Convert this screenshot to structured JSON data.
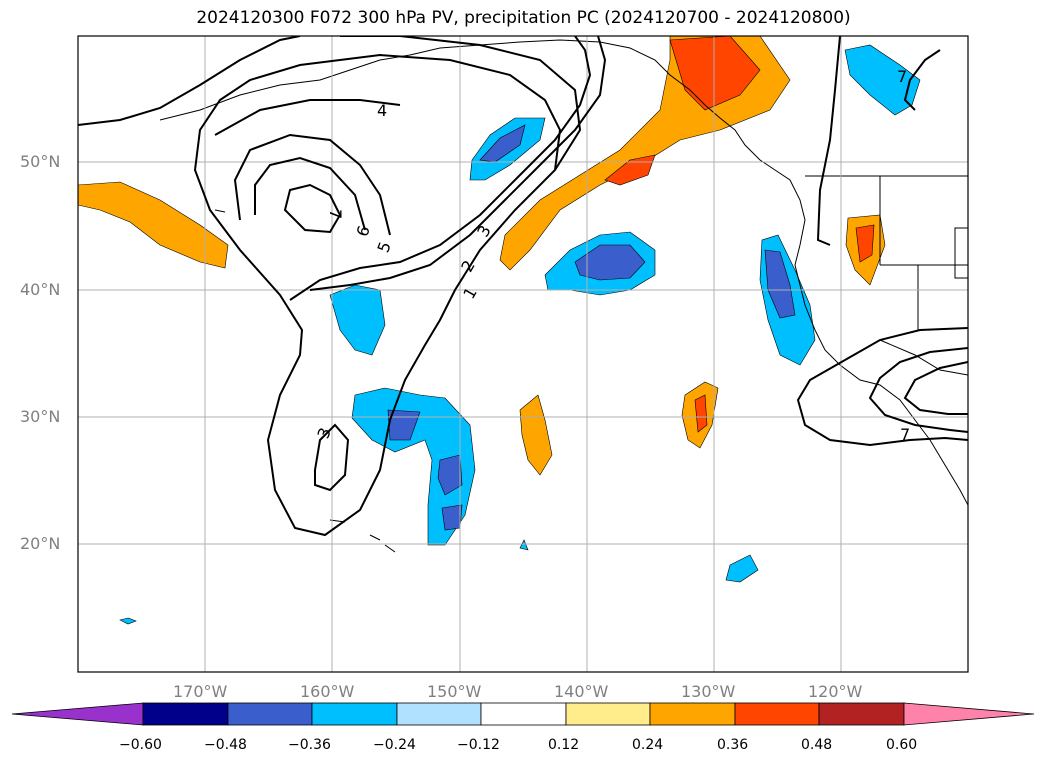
{
  "title": "2024120300 F072 300 hPa PV, precipitation PC (2024120700 - 2024120800)",
  "latitude_labels": [
    "50°N",
    "40°N",
    "30°N",
    "20°N"
  ],
  "longitude_labels": [
    "170°W",
    "160°W",
    "150°W",
    "140°W",
    "130°W",
    "120°W"
  ],
  "contour_labels": [
    "4",
    "7",
    "6",
    "5",
    "3",
    "2",
    "1",
    "3",
    "7",
    "7"
  ],
  "colorbar": {
    "tick_labels": [
      "−0.60",
      "−0.48",
      "−0.36",
      "−0.24",
      "−0.12",
      "0.12",
      "0.24",
      "0.36",
      "0.48",
      "0.60"
    ],
    "colors": [
      "#9932cc",
      "#00008b",
      "#3a5fcd",
      "#00bfff",
      "#b0e2ff",
      "#ffffff",
      "#ffec8b",
      "#ffa500",
      "#ff4500",
      "#b22222",
      "#ff82ab"
    ]
  }
}
